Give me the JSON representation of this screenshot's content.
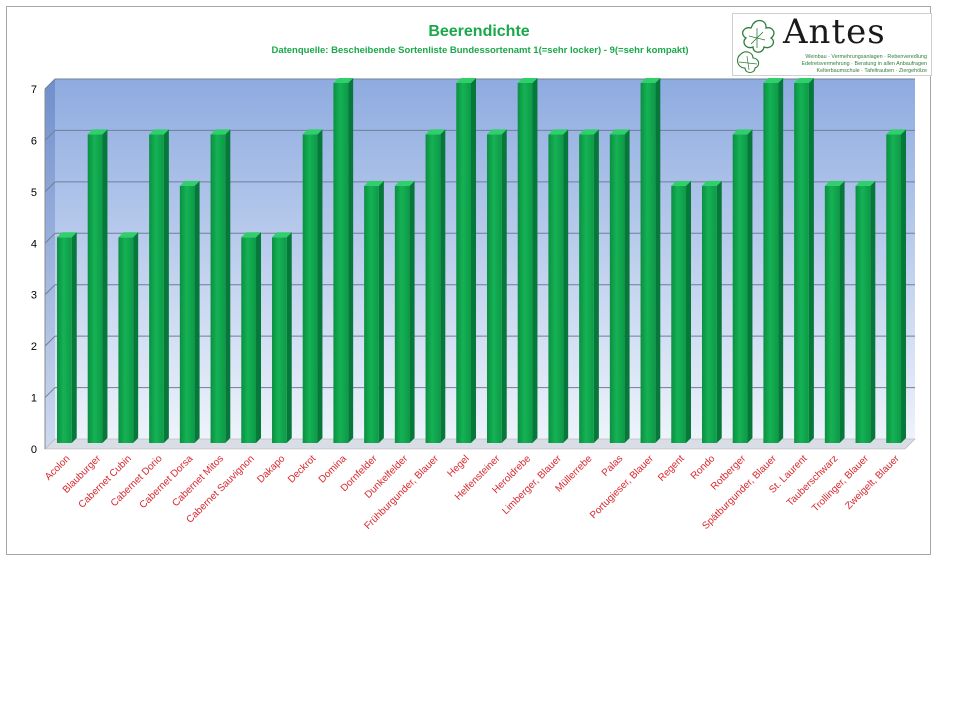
{
  "chart_data": {
    "type": "bar",
    "title": "Beerendichte",
    "subtitle": "Datenquelle: Bescheibende Sortenliste  Bundessortenamt 1(=sehr locker) - 9(=sehr kompakt)",
    "xlabel": "",
    "ylabel": "",
    "ylim": [
      0,
      7
    ],
    "yticks": [
      "0",
      "1",
      "2",
      "3",
      "4",
      "5",
      "6",
      "7"
    ],
    "grid": true,
    "legend": "none",
    "categories": [
      "Acolon",
      "Blauburger",
      "Cabernet Cubin",
      "Cabernet Dorio",
      "Cabernet Dorsa",
      "Cabernet Mitos",
      "Cabernet Sauvignon",
      "Dakapo",
      "Deckrot",
      "Domina",
      "Dornfelder",
      "Dunkelfelder",
      "Frühburgunder, Blauer",
      "Hegel",
      "Helfensteiner",
      "Heroldrebe",
      "Limberger, Blauer",
      "Müllerrebe",
      "Palas",
      "Portugieser, Blauer",
      "Regent",
      "Rondo",
      "Rotberger",
      "Spätburgunder, Blauer",
      "St. Laurent",
      "Tauberschwarz",
      "Trollinger, Blauer",
      "Zweigelt, Blauer"
    ],
    "values": [
      4,
      6,
      4,
      6,
      5,
      6,
      4,
      4,
      6,
      7,
      5,
      5,
      6,
      7,
      6,
      7,
      6,
      6,
      6,
      7,
      5,
      5,
      6,
      7,
      7,
      5,
      5,
      6
    ],
    "colors": {
      "bar": "#0fa04a",
      "bar_top": "#2fcf6a",
      "bar_side": "#06783a",
      "label": "#d9262c",
      "title": "#1aa84a",
      "wall_top": "#8eabe0",
      "wall_bottom": "#eef3fb"
    }
  },
  "logo": {
    "name": "Antes",
    "lines": [
      "Weinbau · Vermehrungsanlagen · Rebenveredlung",
      "Edelreisvermehrung · Beratung in allen Anbaufragen",
      "Kelterbaumschule · Tafeltrauben · Ziergehölze"
    ],
    "icon": "grape-leaf-icon"
  }
}
